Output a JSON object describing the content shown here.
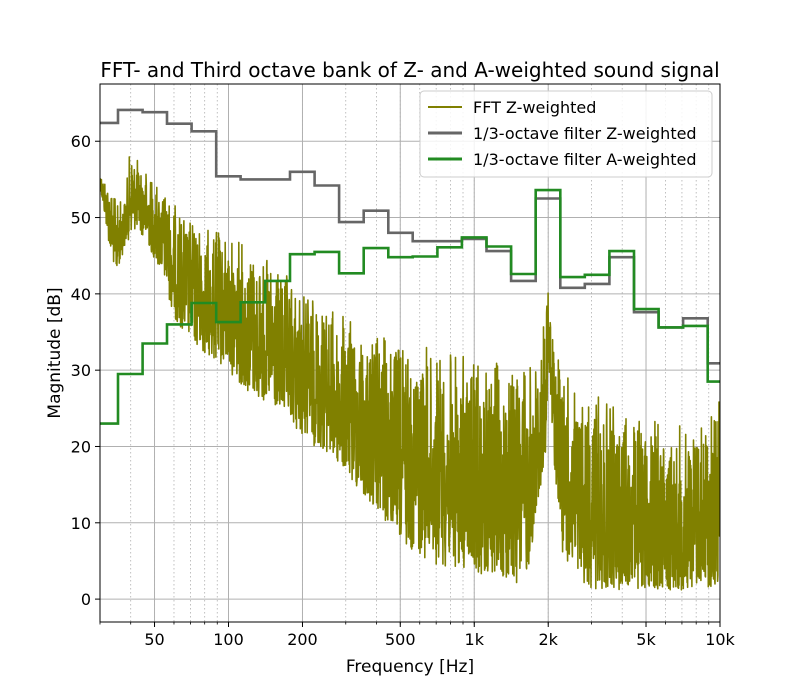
{
  "chart_data": {
    "type": "line",
    "title": "FFT- and Third octave bank of Z- and A-weighted sound signal",
    "xlabel": "Frequency [Hz]",
    "ylabel": "Magnitude [dB]",
    "xscale": "log",
    "xlim": [
      30,
      10000
    ],
    "ylim": [
      -3,
      67.5
    ],
    "grid": true,
    "legend_position": "top-right",
    "x_ticks": [
      {
        "value": 50,
        "label": "50"
      },
      {
        "value": 100,
        "label": "100"
      },
      {
        "value": 200,
        "label": "200"
      },
      {
        "value": 500,
        "label": "500"
      },
      {
        "value": 1000,
        "label": "1k"
      },
      {
        "value": 2000,
        "label": "2k"
      },
      {
        "value": 5000,
        "label": "5k"
      },
      {
        "value": 10000,
        "label": "10k"
      }
    ],
    "y_ticks": [
      0,
      10,
      20,
      30,
      40,
      50,
      60
    ],
    "series": [
      {
        "name": "FFT Z-weighted",
        "color": "#808000",
        "style": "noisy-line",
        "envelope": {
          "f": [
            30,
            33,
            35,
            38,
            40,
            42,
            45,
            50,
            55,
            60,
            70,
            80,
            100,
            120,
            150,
            180,
            200,
            250,
            300,
            400,
            500,
            700,
            1000,
            1300,
            1600,
            1800,
            1950,
            2000,
            2100,
            2300,
            2600,
            3000,
            4000,
            5000,
            7000,
            9000,
            10000
          ],
          "upper": [
            56,
            55,
            52,
            53,
            60,
            58,
            57,
            55,
            54,
            52,
            50,
            49,
            48,
            47,
            44,
            42,
            41,
            39,
            37,
            35,
            34,
            33,
            32,
            31,
            31,
            33,
            38,
            41,
            36,
            30,
            28,
            27,
            25,
            24,
            23,
            25,
            31
          ],
          "lower": [
            54,
            45,
            42,
            46,
            47,
            48,
            47,
            44,
            41,
            36,
            33,
            31,
            29,
            26,
            24,
            22,
            20,
            18,
            15,
            10,
            6,
            3,
            2,
            1,
            0,
            8,
            18,
            28,
            18,
            4,
            1,
            0,
            0,
            0,
            0,
            0,
            0
          ]
        }
      },
      {
        "name": "1/3-octave filter Z-weighted",
        "color": "#666666",
        "style": "step",
        "edges": [
          30,
          35.5,
          44.7,
          56.2,
          70.8,
          89.1,
          112,
          141,
          178,
          224,
          282,
          355,
          447,
          562,
          708,
          891,
          1122,
          1413,
          1778,
          2239,
          2818,
          3548,
          4467,
          5623,
          7079,
          8913,
          10000
        ],
        "values": [
          62.4,
          64.1,
          63.8,
          62.3,
          61.3,
          55.4,
          55.0,
          55.0,
          56.0,
          54.2,
          49.4,
          50.9,
          48.0,
          46.9,
          46.9,
          47.2,
          45.6,
          41.7,
          52.5,
          40.8,
          41.3,
          44.8,
          37.6,
          35.6,
          36.8,
          30.9
        ]
      },
      {
        "name": "1/3-octave filter A-weighted",
        "color": "#228B22",
        "style": "step",
        "edges": [
          30,
          35.5,
          44.7,
          56.2,
          70.8,
          89.1,
          112,
          141,
          178,
          224,
          282,
          355,
          447,
          562,
          708,
          891,
          1122,
          1413,
          1778,
          2239,
          2818,
          3548,
          4467,
          5623,
          7079,
          8913,
          10000
        ],
        "values": [
          23.0,
          29.5,
          33.5,
          36.0,
          38.8,
          36.3,
          38.9,
          41.7,
          45.2,
          45.5,
          42.7,
          46.0,
          44.8,
          44.9,
          46.1,
          47.4,
          46.2,
          42.6,
          53.6,
          42.2,
          42.5,
          45.6,
          38.0,
          35.6,
          35.8,
          28.5
        ]
      }
    ]
  }
}
